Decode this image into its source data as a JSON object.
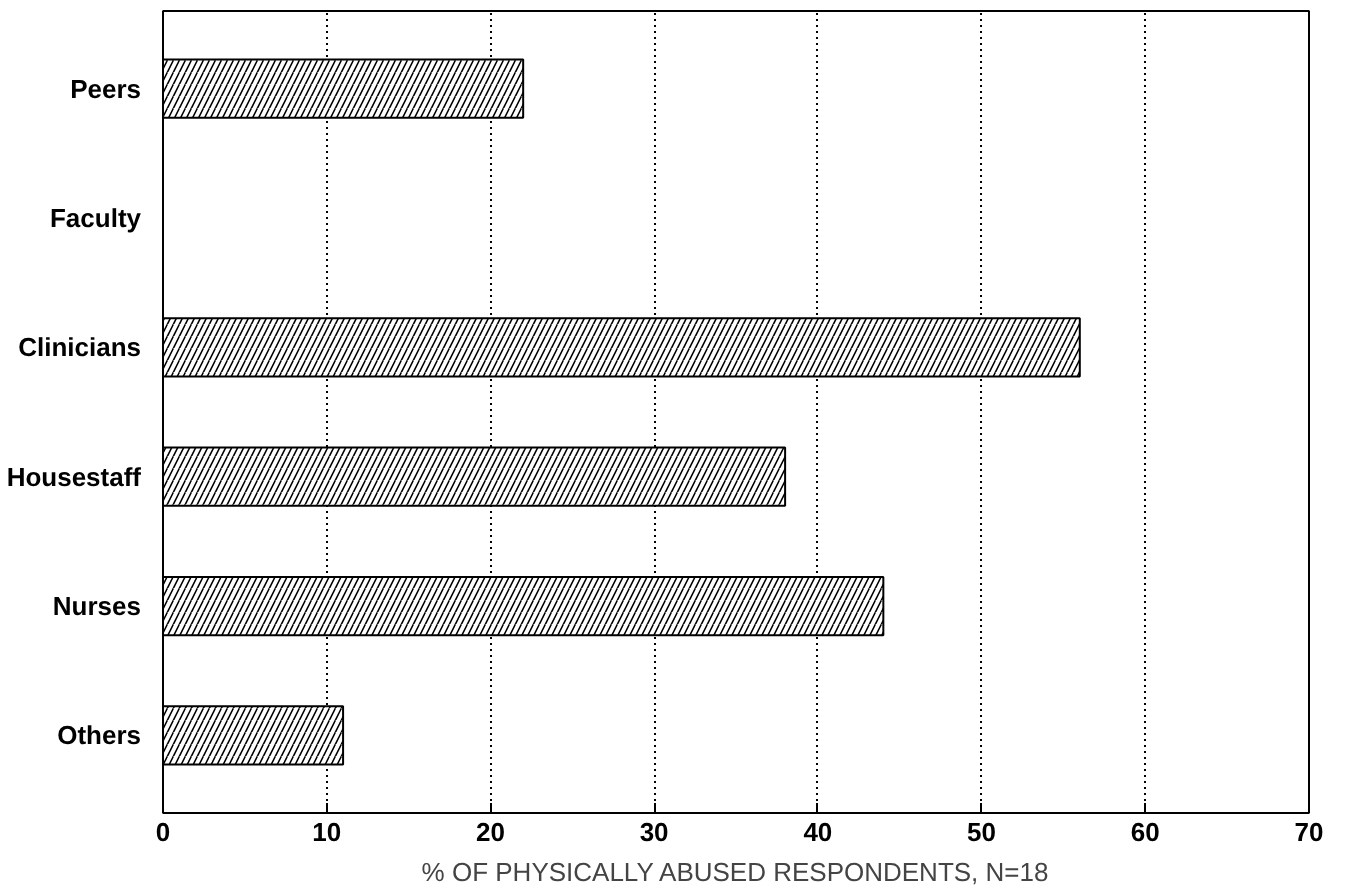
{
  "chart_data": {
    "type": "bar",
    "orientation": "horizontal",
    "xlabel": "% OF PHYSICALLY ABUSED RESPONDENTS, N=18",
    "categories": [
      "Peers",
      "Faculty",
      "Clinicians",
      "Housestaff",
      "Nurses",
      "Others"
    ],
    "values": [
      22,
      0,
      56,
      38,
      44,
      11
    ],
    "color": "#000000",
    "xlim": [
      0,
      70
    ],
    "xticks": [
      0,
      10,
      20,
      30,
      40,
      50,
      60,
      70
    ],
    "grid": "x"
  }
}
